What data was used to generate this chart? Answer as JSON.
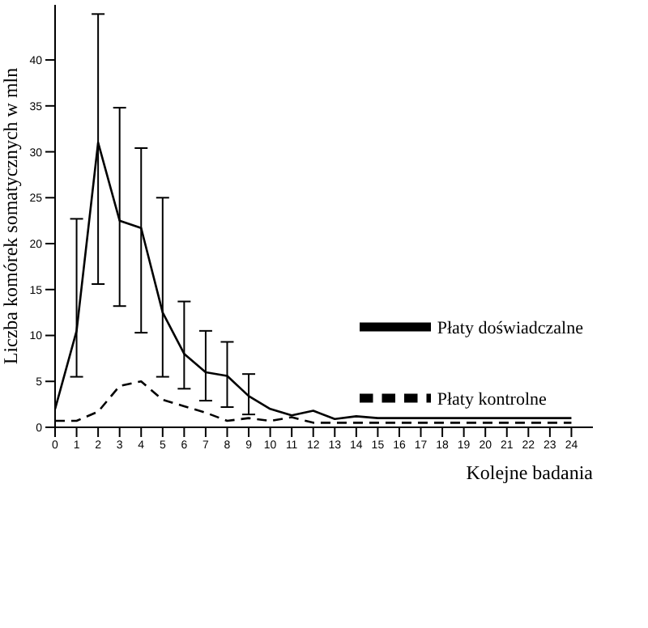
{
  "chart_data": {
    "type": "line",
    "xlabel": "Kolejne badania",
    "ylabel": "Liczba komórek somatycznych w mln",
    "x": [
      0,
      1,
      2,
      3,
      4,
      5,
      6,
      7,
      8,
      9,
      10,
      11,
      12,
      13,
      14,
      15,
      16,
      17,
      18,
      19,
      20,
      21,
      22,
      23,
      24
    ],
    "series": [
      {
        "name": "Płaty doświadczalne",
        "color": "#000000",
        "line_style": "solid",
        "values": [
          2,
          10.5,
          31,
          22.5,
          21.7,
          12.5,
          8,
          6,
          5.6,
          3.4,
          2,
          1.3,
          1.8,
          0.9,
          1.2,
          1,
          1,
          1,
          1,
          1,
          1,
          1,
          1,
          1,
          1
        ],
        "errors": [
          null,
          [
            5.5,
            22.7
          ],
          [
            15.6,
            45
          ],
          [
            13.2,
            34.8
          ],
          [
            10.3,
            30.4
          ],
          [
            5.5,
            25
          ],
          [
            4.2,
            13.7
          ],
          [
            2.9,
            10.5
          ],
          [
            2.2,
            9.3
          ],
          [
            1.4,
            5.8
          ],
          null,
          null,
          null,
          null,
          null,
          null,
          null,
          null,
          null,
          null,
          null,
          null,
          null,
          null,
          null
        ]
      },
      {
        "name": "Płaty kontrolne",
        "color": "#000000",
        "line_style": "dashed",
        "values": [
          0.7,
          0.7,
          1.7,
          4.5,
          5,
          3,
          2.3,
          1.6,
          0.7,
          1,
          0.7,
          1.1,
          0.5,
          0.5,
          0.5,
          0.5,
          0.5,
          0.5,
          0.5,
          0.5,
          0.5,
          0.5,
          0.5,
          0.5,
          0.5
        ]
      }
    ],
    "xlim": [
      0,
      25
    ],
    "xticks": [
      0,
      1,
      2,
      3,
      4,
      5,
      6,
      7,
      8,
      9,
      10,
      11,
      12,
      13,
      14,
      15,
      16,
      17,
      18,
      19,
      20,
      21,
      22,
      23,
      24
    ],
    "ylim": [
      0,
      46
    ],
    "yticks": [
      0,
      5,
      10,
      15,
      20,
      25,
      30,
      35,
      40
    ],
    "grid": false,
    "legend": "right",
    "marker": "none"
  }
}
